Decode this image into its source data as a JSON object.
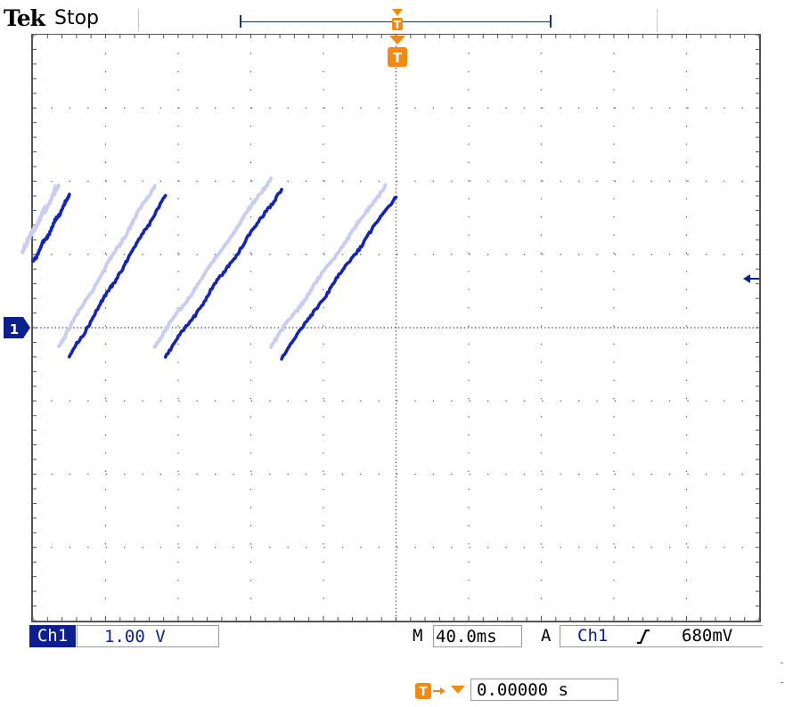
{
  "header": {
    "brand": "Tek",
    "acquisition_state": "Stop"
  },
  "footer": {
    "channel_label": "Ch1",
    "volts_per_div": "1.00 V",
    "timebase_prefix": "M",
    "timebase": "40.0ms",
    "trigger_mode_prefix": "A",
    "trigger_source": "Ch1",
    "trigger_level": "680mV",
    "trigger_position": "0.00000 s"
  },
  "markers": {
    "channel_marker": "1",
    "trigger_marker": "T"
  },
  "colors": {
    "trace": "#1424b4",
    "ghost_trace": "#c9cdf0",
    "marker_blue": "#0d1f8c",
    "trigger_orange": "#f08a12",
    "graticule": "#555555"
  },
  "chart_data": {
    "type": "line",
    "title": "",
    "xlabel": "",
    "ylabel": "",
    "x_unit": "ms",
    "y_unit": "V",
    "xlim": [
      -200,
      200
    ],
    "ylim": [
      -4,
      4
    ],
    "grid": true,
    "divisions": {
      "x": 10,
      "y": 8
    },
    "trigger_level_v": 0.68,
    "series": [
      {
        "segments": [
          [
            [
              -200,
              0.9
            ],
            [
              -180,
              1.8
            ]
          ],
          [
            [
              -180,
              -0.4
            ],
            [
              -127,
              1.8
            ]
          ],
          [
            [
              -127,
              -0.4
            ],
            [
              -63,
              1.9
            ]
          ],
          [
            [
              -63,
              -0.4
            ],
            [
              0,
              1.8
            ]
          ]
        ]
      }
    ]
  }
}
